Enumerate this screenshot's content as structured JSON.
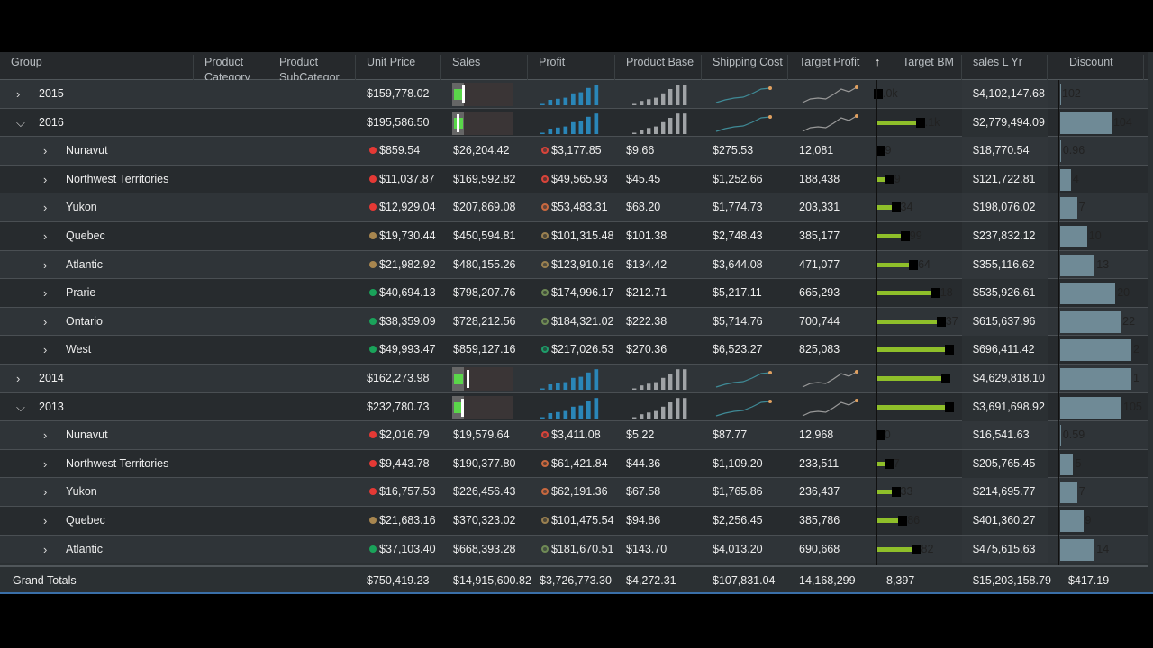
{
  "colors": {
    "dot_red": "#e53935",
    "dot_tan": "#a8864f",
    "dot_green": "#1aa35a",
    "profit_bar": "#2a86b8",
    "base_bar": "#a0a3a6",
    "bm_bar": "#8fbf2a",
    "discount_bar": "#6f8a96",
    "sales_fill": "#5ad64a"
  },
  "headers": [
    "Group",
    "Product Category",
    "Product SubCategor",
    "Unit Price",
    "Sales",
    "Profit",
    "Product Base",
    "Shipping Cost",
    "Target Profit",
    "↑",
    "Target BM",
    "sales L Yr",
    "Discount"
  ],
  "rows": [
    {
      "type": "year",
      "expanded": false,
      "group": "2015",
      "unit_price": "$159,778.02",
      "sales_fill": 0.5,
      "sales_marker": 0.55,
      "bm_label": ".0k",
      "bm_fill": 0,
      "sales_lyr": "$4,102,147.68",
      "discount": "102",
      "discount_fill": 0
    },
    {
      "type": "year",
      "expanded": true,
      "group": "2016",
      "unit_price": "$195,586.50",
      "sales_fill": 0.5,
      "sales_marker": 0.2,
      "bm_label": ".1k",
      "bm_fill": 0.55,
      "sales_lyr": "$2,779,494.09",
      "discount": "104",
      "discount_fill": 0.67
    },
    {
      "type": "child",
      "group": "Nunavut",
      "unit_price": "$859.54",
      "dot": "red",
      "sales": "$26,204.42",
      "profit": "$3,177.85",
      "pdot": "#d9443a",
      "base": "$9.66",
      "ship": "$275.53",
      "tprofit": "12,081",
      "bm_label": "9",
      "bm_fill": 0.03,
      "sales_lyr": "$18,770.54",
      "discount": "0.96",
      "discount_fill": 0.01
    },
    {
      "type": "child",
      "group": "Northwest Territories",
      "unit_price": "$11,037.87",
      "dot": "red",
      "sales": "$169,592.82",
      "profit": "$49,565.93",
      "pdot": "#d9443a",
      "base": "$45.45",
      "ship": "$1,252.66",
      "tprofit": "188,438",
      "bm_label": "9",
      "bm_fill": 0.15,
      "sales_lyr": "$121,722.81",
      "discount": "4",
      "discount_fill": 0.14
    },
    {
      "type": "child",
      "group": "Yukon",
      "unit_price": "$12,929.04",
      "dot": "red",
      "sales": "$207,869.08",
      "profit": "$53,483.31",
      "pdot": "#c8683f",
      "base": "$68.20",
      "ship": "$1,774.73",
      "tprofit": "203,331",
      "bm_label": "34",
      "bm_fill": 0.23,
      "sales_lyr": "$198,076.02",
      "discount": "7",
      "discount_fill": 0.22
    },
    {
      "type": "child",
      "group": "Quebec",
      "unit_price": "$19,730.44",
      "dot": "tan",
      "sales": "$450,594.81",
      "profit": "$101,315.48",
      "pdot": "#9a8050",
      "base": "$101.38",
      "ship": "$2,748.43",
      "tprofit": "385,177",
      "bm_label": "99",
      "bm_fill": 0.35,
      "sales_lyr": "$237,832.12",
      "discount": "10",
      "discount_fill": 0.35
    },
    {
      "type": "child",
      "group": "Atlantic",
      "unit_price": "$21,982.92",
      "dot": "tan",
      "sales": "$480,155.26",
      "profit": "$123,910.16",
      "pdot": "#9a8050",
      "base": "$134.42",
      "ship": "$3,644.08",
      "tprofit": "471,077",
      "bm_label": "64",
      "bm_fill": 0.46,
      "sales_lyr": "$355,116.62",
      "discount": "13",
      "discount_fill": 0.45
    },
    {
      "type": "child",
      "group": "Prarie",
      "unit_price": "$40,694.13",
      "dot": "green",
      "sales": "$798,207.76",
      "profit": "$174,996.17",
      "pdot": "#6f8a55",
      "base": "$212.71",
      "ship": "$5,217.11",
      "tprofit": "665,293",
      "bm_label": "18",
      "bm_fill": 0.75,
      "sales_lyr": "$535,926.61",
      "discount": "20",
      "discount_fill": 0.72
    },
    {
      "type": "child",
      "group": "Ontario",
      "unit_price": "$38,359.09",
      "dot": "green",
      "sales": "$728,212.56",
      "profit": "$184,321.02",
      "pdot": "#6f8a55",
      "base": "$222.38",
      "ship": "$5,714.76",
      "tprofit": "700,744",
      "bm_label": "37",
      "bm_fill": 0.82,
      "sales_lyr": "$615,637.96",
      "discount": "22",
      "discount_fill": 0.79
    },
    {
      "type": "child",
      "group": "West",
      "unit_price": "$49,993.47",
      "dot": "green",
      "sales": "$859,127.16",
      "profit": "$217,026.53",
      "pdot": "#1e9e6a",
      "base": "$270.36",
      "ship": "$6,523.27",
      "tprofit": "825,083",
      "bm_label": "",
      "bm_fill": 0.93,
      "sales_lyr": "$696,411.42",
      "discount": "2",
      "discount_fill": 0.93
    },
    {
      "type": "year",
      "expanded": false,
      "group": "2014",
      "unit_price": "$162,273.98",
      "sales_fill": 0.5,
      "sales_marker": 0.9,
      "bm_label": "",
      "bm_fill": 0.88,
      "sales_lyr": "$4,629,818.10",
      "discount": "1",
      "discount_fill": 0.93
    },
    {
      "type": "year",
      "expanded": true,
      "group": "2013",
      "unit_price": "$232,780.73",
      "sales_fill": 0.5,
      "sales_marker": 0.5,
      "bm_label": "",
      "bm_fill": 0.93,
      "sales_lyr": "$3,691,698.92",
      "discount": "105",
      "discount_fill": 0.8
    },
    {
      "type": "child",
      "group": "Nunavut",
      "unit_price": "$2,016.79",
      "dot": "red",
      "sales": "$19,579.64",
      "profit": "$3,411.08",
      "pdot": "#d9443a",
      "base": "$5.22",
      "ship": "$87.77",
      "tprofit": "12,968",
      "bm_label": "0",
      "bm_fill": 0.02,
      "sales_lyr": "$16,541.63",
      "discount": "0.59",
      "discount_fill": 0.01
    },
    {
      "type": "child",
      "group": "Northwest Territories",
      "unit_price": "$9,443.78",
      "dot": "red",
      "sales": "$190,377.80",
      "profit": "$61,421.84",
      "pdot": "#c8683f",
      "base": "$44.36",
      "ship": "$1,109.20",
      "tprofit": "233,511",
      "bm_label": "7",
      "bm_fill": 0.14,
      "sales_lyr": "$205,765.45",
      "discount": "5",
      "discount_fill": 0.17
    },
    {
      "type": "child",
      "group": "Yukon",
      "unit_price": "$16,757.53",
      "dot": "red",
      "sales": "$226,456.43",
      "profit": "$62,191.36",
      "pdot": "#c8683f",
      "base": "$67.58",
      "ship": "$1,765.86",
      "tprofit": "236,437",
      "bm_label": "33",
      "bm_fill": 0.23,
      "sales_lyr": "$214,695.77",
      "discount": "7",
      "discount_fill": 0.22
    },
    {
      "type": "child",
      "group": "Quebec",
      "unit_price": "$21,683.16",
      "dot": "tan",
      "sales": "$370,323.02",
      "profit": "$101,475.54",
      "pdot": "#9a8050",
      "base": "$94.86",
      "ship": "$2,256.45",
      "tprofit": "385,786",
      "bm_label": "86",
      "bm_fill": 0.32,
      "sales_lyr": "$401,360.27",
      "discount": "9",
      "discount_fill": 0.3
    },
    {
      "type": "child",
      "group": "Atlantic",
      "unit_price": "$37,103.40",
      "dot": "green",
      "sales": "$668,393.28",
      "profit": "$181,670.51",
      "pdot": "#6f8a55",
      "base": "$143.70",
      "ship": "$4,013.20",
      "tprofit": "690,668",
      "bm_label": "82",
      "bm_fill": 0.5,
      "sales_lyr": "$475,615.63",
      "discount": "14",
      "discount_fill": 0.45
    }
  ],
  "sparks": {
    "profit": [
      0.05,
      0.25,
      0.3,
      0.35,
      0.55,
      0.6,
      0.8,
      0.95
    ],
    "base": [
      0.05,
      0.2,
      0.28,
      0.35,
      0.55,
      0.75,
      0.95,
      0.95
    ],
    "ship": [
      0.1,
      0.25,
      0.35,
      0.4,
      0.6,
      0.85,
      0.9
    ],
    "tprofit": [
      0.1,
      0.3,
      0.35,
      0.3,
      0.55,
      0.85,
      0.7,
      0.95
    ]
  },
  "totals": {
    "label": "Grand Totals",
    "unit_price": "$750,419.23",
    "sales": "$14,915,600.82",
    "profit": "$3,726,773.30",
    "base": "$4,272.31",
    "ship": "$107,831.04",
    "tprofit": "14,168,299",
    "bm": "8,397",
    "sales_lyr": "$15,203,158.79",
    "discount": "$417.19"
  }
}
